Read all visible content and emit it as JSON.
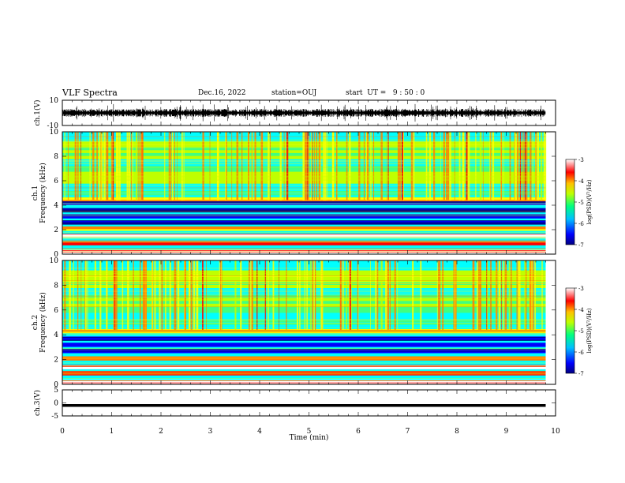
{
  "header": {
    "title": "VLF Spectra",
    "date": "Dec.16, 2022",
    "station": "station=OUJ",
    "start_ut": "start  UT =   9 : 50 : 0"
  },
  "chart_data": [
    {
      "type": "line",
      "panel": "ch1-waveform",
      "ylabel": "ch.1(V)",
      "ylim": [
        -10,
        10
      ],
      "yticks": [
        "10",
        "-10"
      ],
      "xlim": [
        0,
        10
      ],
      "color": "#000000",
      "description_values": {
        "x_end_min": 9.8,
        "amplitude_approx_V": 2
      }
    },
    {
      "type": "heatmap",
      "panel": "ch1-spectrogram",
      "ylabel": "ch.1\nFrequency (kHz)",
      "ylabel_line1": "ch.1",
      "ylabel_line2": "Frequency (kHz)",
      "ylim": [
        0,
        10
      ],
      "yticks": [
        "0",
        "2",
        "4",
        "6",
        "8",
        "10"
      ],
      "xlim": [
        0,
        10
      ],
      "x_end_min": 9.8,
      "colorbar": {
        "label": "log(PSD)(V²/Hz)",
        "range": [
          -7,
          -3
        ],
        "ticks": [
          "-3",
          "-4",
          "-5",
          "-6",
          "-7"
        ]
      },
      "bands_kHz": [
        {
          "f": 0.2,
          "level": -3.1
        },
        {
          "f": 0.9,
          "level": -3.8
        },
        {
          "f": 1.5,
          "level": -3.0
        },
        {
          "f": 2.1,
          "level": -4.0
        },
        {
          "f": 2.6,
          "level": -6.8
        },
        {
          "f": 3.1,
          "level": -6.5
        },
        {
          "f": 3.6,
          "level": -6.9
        },
        {
          "f": 4.2,
          "level": -6.6
        },
        {
          "f": 4.5,
          "level": -4.3
        },
        {
          "f": 5.0,
          "level": -5.4
        },
        {
          "f": 6.5,
          "level": -5.1
        },
        {
          "f": 8.5,
          "level": -4.9
        }
      ]
    },
    {
      "type": "heatmap",
      "panel": "ch2-spectrogram",
      "ylabel": "ch.2\nFrequency (kHz)",
      "ylabel_line1": "ch.2",
      "ylabel_line2": "Frequency (kHz)",
      "ylim": [
        0,
        10
      ],
      "yticks": [
        "0",
        "2",
        "4",
        "6",
        "8",
        "10"
      ],
      "xlim": [
        0,
        10
      ],
      "x_end_min": 9.8,
      "colorbar": {
        "label": "log(PSD)(V²/Hz)",
        "range": [
          -7,
          -3
        ],
        "ticks": [
          "-3",
          "-4",
          "-5",
          "-6",
          "-7"
        ]
      },
      "bands_kHz": [
        {
          "f": 0.2,
          "level": -3.2
        },
        {
          "f": 0.9,
          "level": -3.6
        },
        {
          "f": 1.4,
          "level": -3.0
        },
        {
          "f": 2.1,
          "level": -4.0
        },
        {
          "f": 2.7,
          "level": -6.7
        },
        {
          "f": 3.2,
          "level": -6.6
        },
        {
          "f": 3.7,
          "level": -6.8
        },
        {
          "f": 4.3,
          "level": -4.1
        },
        {
          "f": 5.0,
          "level": -5.3
        },
        {
          "f": 6.5,
          "level": -5.0
        },
        {
          "f": 8.5,
          "level": -4.8
        }
      ]
    },
    {
      "type": "line",
      "panel": "ch3-trace",
      "ylabel": "ch.3(V)",
      "ylim": [
        -5,
        5
      ],
      "yticks": [
        "5",
        "0",
        "-5"
      ],
      "xlim": [
        0,
        10
      ],
      "x_end_min": 9.8,
      "y_value_V": -1,
      "color": "#000000"
    }
  ],
  "x_axis": {
    "label": "Time (min)",
    "ticks": [
      "0",
      "1",
      "2",
      "3",
      "4",
      "5",
      "6",
      "7",
      "8",
      "9",
      "10"
    ]
  },
  "colormap": [
    "#000080",
    "#0000ff",
    "#0080ff",
    "#00ffff",
    "#40ff80",
    "#c0ff00",
    "#ffff00",
    "#ff8000",
    "#ff0000",
    "#ffffff"
  ]
}
